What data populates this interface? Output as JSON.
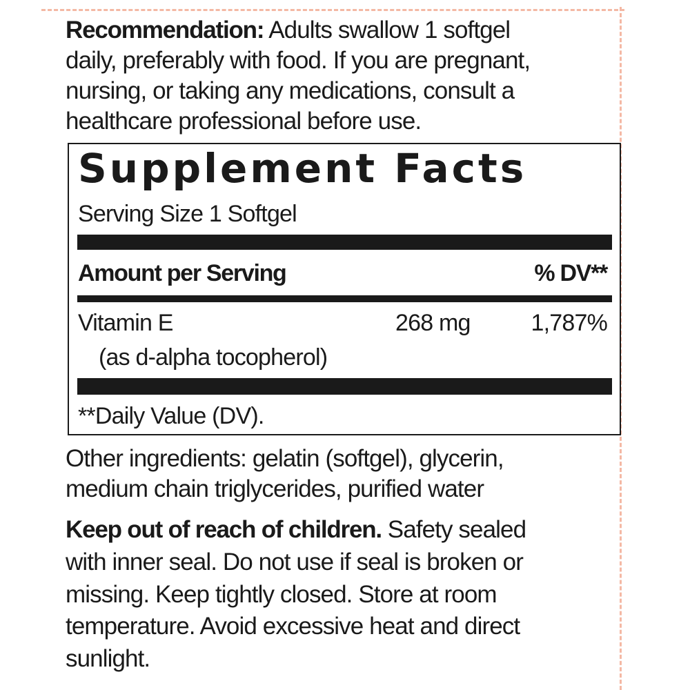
{
  "recommendation": {
    "label": "Recommendation:",
    "lines": [
      "Adults swallow 1 softgel",
      "daily, preferably with food. If you are pregnant,",
      "nursing, or taking any medications, consult a",
      "healthcare professional before use."
    ]
  },
  "facts": {
    "title": "Supplement Facts",
    "serving_size": "Serving Size 1 Softgel",
    "amount_header": "Amount per Serving",
    "dv_header": "% DV**",
    "rows": [
      {
        "name": "Vitamin E",
        "sub": "(as d-alpha tocopherol)",
        "amount": "268 mg",
        "dv": "1,787%"
      }
    ],
    "footnote": "**Daily Value (DV)."
  },
  "other_ingredients": [
    "Other ingredients: gelatin (softgel), glycerin,",
    "medium chain triglycerides, purified water"
  ],
  "warning": {
    "label": "Keep out of reach of children.",
    "lines": [
      "Safety sealed",
      "with inner seal. Do not use if seal is broken or",
      "missing. Keep tightly closed. Store at room",
      "temperature. Avoid excessive heat and direct",
      "sunlight."
    ]
  },
  "colors": {
    "guide_lines": "#f4b8a4",
    "text": "#1a1a1a"
  }
}
